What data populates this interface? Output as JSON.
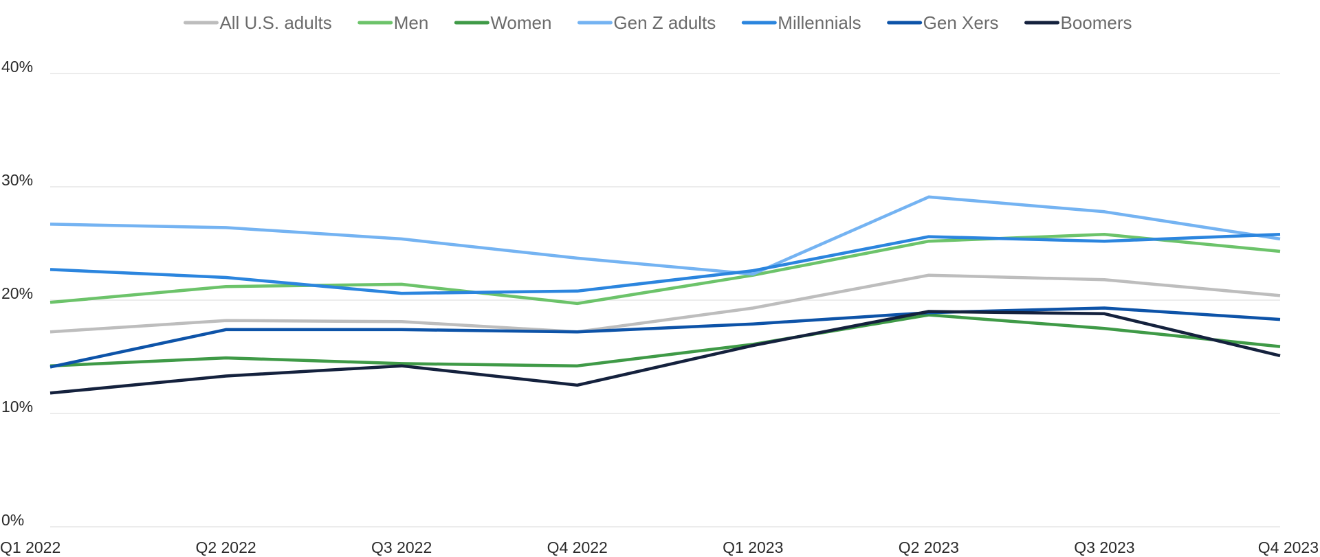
{
  "chart_data": {
    "type": "line",
    "title": "",
    "xlabel": "",
    "ylabel": "",
    "categories": [
      "Q1 2022",
      "Q2 2022",
      "Q3 2022",
      "Q4 2022",
      "Q1 2023",
      "Q2 2023",
      "Q3 2023",
      "Q4 2023"
    ],
    "ylim": [
      0,
      40
    ],
    "y_ticks": [
      0,
      10,
      20,
      30,
      40
    ],
    "y_tick_labels": [
      "0%",
      "10%",
      "20%",
      "30%",
      "40%"
    ],
    "grid": true,
    "legend_placement": "top-center",
    "series": [
      {
        "name": "All U.S. adults",
        "color": "#bdbdbd",
        "values": [
          17.2,
          18.2,
          18.1,
          17.2,
          19.3,
          22.2,
          21.8,
          20.4
        ]
      },
      {
        "name": "Men",
        "color": "#6cc36a",
        "values": [
          19.8,
          21.2,
          21.4,
          19.7,
          22.2,
          25.2,
          25.8,
          24.3
        ]
      },
      {
        "name": "Women",
        "color": "#3f9a47",
        "values": [
          14.2,
          14.9,
          14.4,
          14.2,
          16.1,
          18.7,
          17.5,
          15.9
        ]
      },
      {
        "name": "Gen Z adults",
        "color": "#74b3f2",
        "values": [
          26.7,
          26.4,
          25.4,
          23.7,
          22.3,
          29.1,
          27.8,
          25.4
        ]
      },
      {
        "name": "Millennials",
        "color": "#2b85de",
        "values": [
          22.7,
          22.0,
          20.6,
          20.8,
          22.6,
          25.6,
          25.2,
          25.8
        ]
      },
      {
        "name": "Gen Xers",
        "color": "#0d53a8",
        "values": [
          14.1,
          17.4,
          17.4,
          17.2,
          17.9,
          18.9,
          19.3,
          18.3
        ]
      },
      {
        "name": "Boomers",
        "color": "#14213d",
        "values": [
          11.8,
          13.3,
          14.2,
          12.5,
          16.0,
          19.0,
          18.8,
          15.1
        ]
      }
    ]
  }
}
